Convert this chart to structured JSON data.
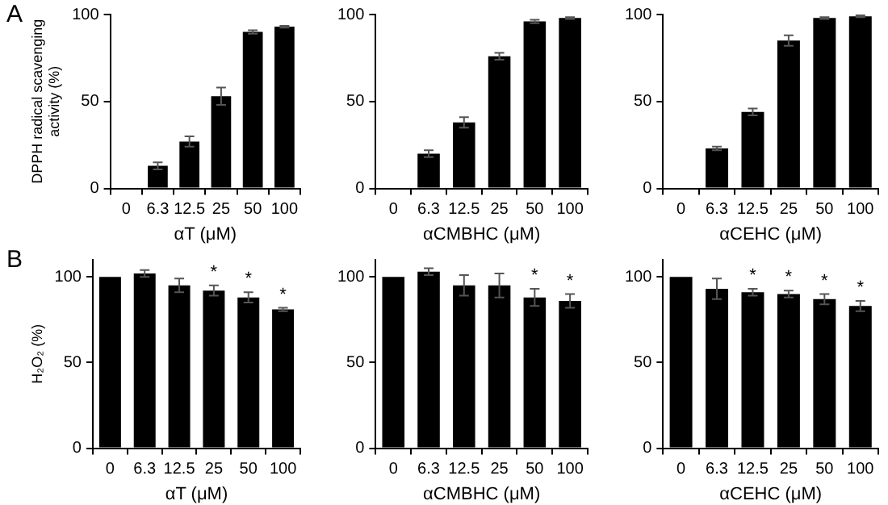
{
  "chart_data": [
    {
      "type": "bar",
      "ylabel": "DPPH radical scavenging activity (%)",
      "xlabel": "αT (μM)",
      "annotations": [
        "A"
      ],
      "categories": [
        "0",
        "6.3",
        "12.5",
        "25",
        "50",
        "100"
      ],
      "ylim": [
        0,
        100
      ],
      "yticks": [
        0,
        50,
        100
      ],
      "series": [
        {
          "color": "#000000",
          "values": [
            0,
            13,
            27,
            53,
            90,
            93
          ],
          "errors": [
            null,
            2,
            3,
            5,
            1,
            0.5
          ]
        }
      ]
    },
    {
      "type": "bar",
      "xlabel": "αCMBHC (μM)",
      "categories": [
        "0",
        "6.3",
        "12.5",
        "25",
        "50",
        "100"
      ],
      "ylim": [
        0,
        100
      ],
      "yticks": [
        0,
        50,
        100
      ],
      "series": [
        {
          "color": "#000000",
          "values": [
            0,
            20,
            38,
            76,
            96,
            98
          ],
          "errors": [
            null,
            2,
            3,
            2,
            1,
            0.5
          ]
        }
      ]
    },
    {
      "type": "bar",
      "xlabel": "αCEHC (μM)",
      "categories": [
        "0",
        "6.3",
        "12.5",
        "25",
        "50",
        "100"
      ],
      "ylim": [
        0,
        100
      ],
      "yticks": [
        0,
        50,
        100
      ],
      "series": [
        {
          "color": "#000000",
          "values": [
            0,
            23,
            44,
            85,
            98,
            99
          ],
          "errors": [
            null,
            1,
            2,
            3,
            0.5,
            0.5
          ]
        }
      ]
    },
    {
      "type": "bar",
      "ylabel": "H₂O₂ (%)",
      "xlabel": "αT (μM)",
      "annotations": [
        "B",
        {
          "text": "*",
          "x": "25",
          "y": 92
        },
        {
          "text": "*",
          "x": "50",
          "y": 88
        },
        {
          "text": "*",
          "x": "100",
          "y": 81
        }
      ],
      "categories": [
        "0",
        "6.3",
        "12.5",
        "25",
        "50",
        "100"
      ],
      "ylim": [
        0,
        110
      ],
      "yticks": [
        0,
        50,
        100
      ],
      "series": [
        {
          "color": "#000000",
          "values": [
            100,
            102,
            95,
            92,
            88,
            81
          ],
          "errors": [
            null,
            2,
            4,
            3,
            3,
            1
          ]
        }
      ]
    },
    {
      "type": "bar",
      "xlabel": "αCMBHC (μM)",
      "annotations": [
        {
          "text": "*",
          "x": "50",
          "y": 88
        },
        {
          "text": "*",
          "x": "100",
          "y": 86
        }
      ],
      "categories": [
        "0",
        "6.3",
        "12.5",
        "25",
        "50",
        "100"
      ],
      "ylim": [
        0,
        110
      ],
      "yticks": [
        0,
        50,
        100
      ],
      "series": [
        {
          "color": "#000000",
          "values": [
            100,
            103,
            95,
            95,
            88,
            86
          ],
          "errors": [
            null,
            2,
            6,
            7,
            5,
            4
          ]
        }
      ]
    },
    {
      "type": "bar",
      "xlabel": "αCEHC (μM)",
      "annotations": [
        {
          "text": "*",
          "x": "12.5",
          "y": 91
        },
        {
          "text": "*",
          "x": "25",
          "y": 90
        },
        {
          "text": "*",
          "x": "50",
          "y": 87
        },
        {
          "text": "*",
          "x": "100",
          "y": 83
        }
      ],
      "categories": [
        "0",
        "6.3",
        "12.5",
        "25",
        "50",
        "100"
      ],
      "ylim": [
        0,
        110
      ],
      "yticks": [
        0,
        50,
        100
      ],
      "series": [
        {
          "color": "#000000",
          "values": [
            100,
            93,
            91,
            90,
            87,
            83
          ],
          "errors": [
            null,
            6,
            2,
            2,
            3,
            3
          ]
        }
      ]
    }
  ]
}
